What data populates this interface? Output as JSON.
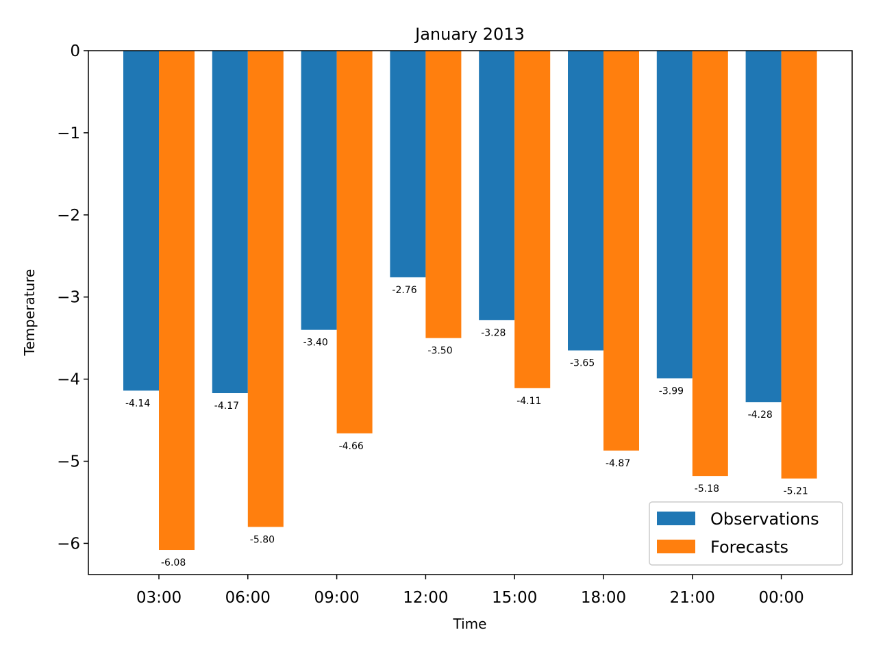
{
  "chart_data": {
    "type": "bar",
    "title": "January 2013",
    "xlabel": "Time",
    "ylabel": "Temperature",
    "categories": [
      "03:00",
      "06:00",
      "09:00",
      "12:00",
      "15:00",
      "18:00",
      "21:00",
      "00:00"
    ],
    "series": [
      {
        "name": "Observations",
        "color": "#1f77b4",
        "values": [
          -4.14,
          -4.17,
          -3.4,
          -2.76,
          -3.28,
          -3.65,
          -3.99,
          -4.28
        ],
        "labels": [
          "-4.14",
          "-4.17",
          "-3.40",
          "-2.76",
          "-3.28",
          "-3.65",
          "-3.99",
          "-4.28"
        ]
      },
      {
        "name": "Forecasts",
        "color": "#ff7f0e",
        "values": [
          -6.08,
          -5.8,
          -4.66,
          -3.5,
          -4.11,
          -4.87,
          -5.18,
          -5.21
        ],
        "labels": [
          "-6.08",
          "-5.80",
          "-4.66",
          "-3.50",
          "-4.11",
          "-4.87",
          "-5.18",
          "-5.21"
        ]
      }
    ],
    "ylim": [
      -6.38,
      0
    ],
    "yticks": [
      0,
      -1,
      -2,
      -3,
      -4,
      -5,
      -6
    ],
    "ytick_labels": [
      "0",
      "−1",
      "−2",
      "−3",
      "−4",
      "−5",
      "−6"
    ],
    "grid": false,
    "legend_position": "lower-right"
  }
}
